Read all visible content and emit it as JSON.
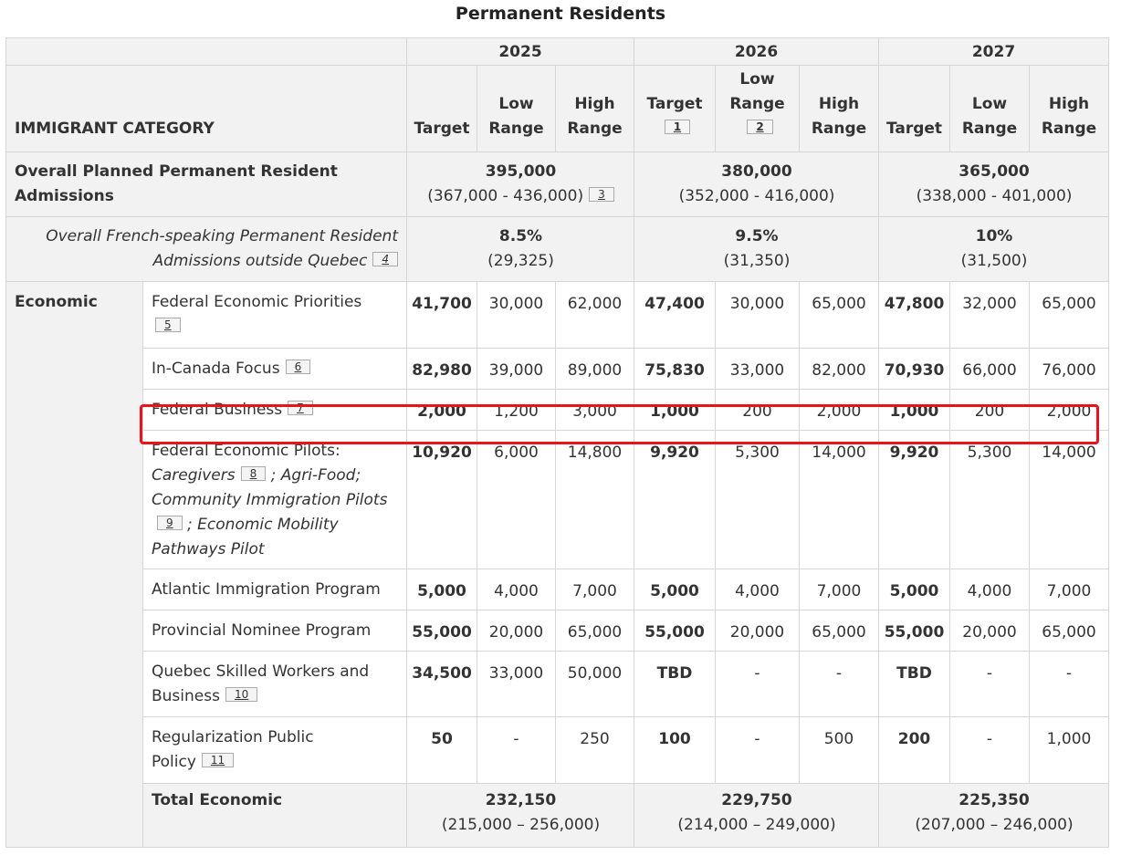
{
  "caption": "Permanent Residents",
  "header": {
    "years": [
      "2025",
      "2026",
      "2027"
    ],
    "category_label": "IMMIGRANT CATEGORY",
    "target": "Target",
    "low_range": "Low Range",
    "high_range": "High Range",
    "low_range_2026": "Low Range",
    "fn_target_2026": "1",
    "fn_low_2026": "2"
  },
  "overall": {
    "label": "Overall Planned Permanent Resident Admissions",
    "cells": [
      {
        "value": "395,000",
        "range": "(367,000 - 436,000)",
        "fn": "3"
      },
      {
        "value": "380,000",
        "range": "(352,000 - 416,000)"
      },
      {
        "value": "365,000",
        "range": "(338,000 - 401,000)"
      }
    ]
  },
  "french": {
    "label_line1": "Overall French-speaking Permanent Resident",
    "label_line2": "Admissions outside Quebec",
    "fn": "4",
    "cells": [
      {
        "value": "8.5%",
        "range": "(29,325)"
      },
      {
        "value": "9.5%",
        "range": "(31,350)"
      },
      {
        "value": "10%",
        "range": "(31,500)"
      }
    ]
  },
  "economic": {
    "label": "Economic",
    "rows": [
      {
        "name": "Federal Economic Priorities",
        "fn": "5",
        "values": [
          "41,700",
          "30,000",
          "62,000",
          "47,400",
          "30,000",
          "65,000",
          "47,800",
          "32,000",
          "65,000"
        ]
      },
      {
        "name": "In-Canada Focus",
        "fn": "6",
        "values": [
          "82,980",
          "39,000",
          "89,000",
          "75,830",
          "33,000",
          "82,000",
          "70,930",
          "66,000",
          "76,000"
        ]
      },
      {
        "name": "Federal Business",
        "fn": "7",
        "values": [
          "2,000",
          "1,200",
          "3,000",
          "1,000",
          "200",
          "2,000",
          "1,000",
          "200",
          "2,000"
        ]
      },
      {
        "name": "Federal Economic Pilots:",
        "pilots": {
          "caregivers": "Caregivers",
          "fn8": "8",
          "agri": "; Agri-Food; Community Immigration Pilots",
          "fn9": "9",
          "emp": "; Economic Mobility Pathways Pilot"
        },
        "values": [
          "10,920",
          "6,000",
          "14,800",
          "9,920",
          "5,300",
          "14,000",
          "9,920",
          "5,300",
          "14,000"
        ]
      },
      {
        "name": "Atlantic Immigration Program",
        "values": [
          "5,000",
          "4,000",
          "7,000",
          "5,000",
          "4,000",
          "7,000",
          "5,000",
          "4,000",
          "7,000"
        ]
      },
      {
        "name": "Provincial Nominee Program",
        "values": [
          "55,000",
          "20,000",
          "65,000",
          "55,000",
          "20,000",
          "65,000",
          "55,000",
          "20,000",
          "65,000"
        ]
      },
      {
        "name": "Quebec Skilled Workers and Business",
        "fn": "10",
        "values": [
          "34,500",
          "33,000",
          "50,000",
          "TBD",
          "-",
          "-",
          "TBD",
          "-",
          "-"
        ]
      },
      {
        "name": "Regularization Public Policy",
        "fn": "11",
        "values": [
          "50",
          "-",
          "250",
          "100",
          "-",
          "500",
          "200",
          "-",
          "1,000"
        ]
      }
    ],
    "total": {
      "label": "Total Economic",
      "cells": [
        {
          "value": "232,150",
          "range": "(215,000 – 256,000)"
        },
        {
          "value": "229,750",
          "range": "(214,000 – 249,000)"
        },
        {
          "value": "225,350",
          "range": "(207,000 – 246,000)"
        }
      ]
    }
  },
  "highlight_color": "#e8141a"
}
